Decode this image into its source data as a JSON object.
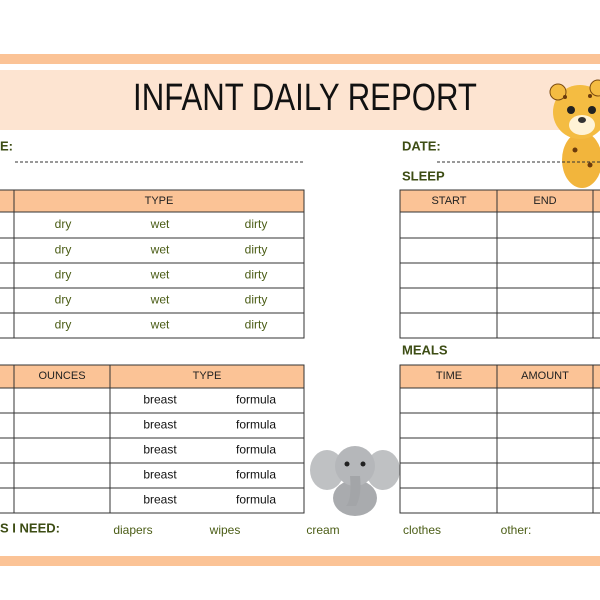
{
  "header": {
    "title": "INFANT DAILY REPORT"
  },
  "labels": {
    "name": "E:",
    "date": "DATE:",
    "sleep": "SLEEP",
    "meals": "MEALS",
    "needs": "S I NEED:"
  },
  "diaper_table": {
    "headers": [
      "TYPE"
    ],
    "rows": [
      [
        "dry",
        "wet",
        "dirty"
      ],
      [
        "dry",
        "wet",
        "dirty"
      ],
      [
        "dry",
        "wet",
        "dirty"
      ],
      [
        "dry",
        "wet",
        "dirty"
      ],
      [
        "dry",
        "wet",
        "dirty"
      ]
    ]
  },
  "sleep_table": {
    "headers": [
      "START",
      "END"
    ]
  },
  "feeding_table": {
    "headers": [
      "OUNCES",
      "TYPE"
    ],
    "rows": [
      [
        "breast",
        "formula"
      ],
      [
        "breast",
        "formula"
      ],
      [
        "breast",
        "formula"
      ],
      [
        "breast",
        "formula"
      ],
      [
        "breast",
        "formula"
      ]
    ]
  },
  "meals_table": {
    "headers": [
      "TIME",
      "AMOUNT"
    ]
  },
  "needs": [
    "diapers",
    "wipes",
    "cream",
    "clothes",
    "other:"
  ]
}
